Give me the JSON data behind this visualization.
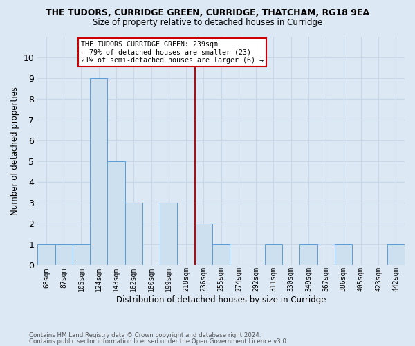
{
  "title": "THE TUDORS, CURRIDGE GREEN, CURRIDGE, THATCHAM, RG18 9EA",
  "subtitle": "Size of property relative to detached houses in Curridge",
  "xlabel": "Distribution of detached houses by size in Curridge",
  "ylabel": "Number of detached properties",
  "footnote1": "Contains HM Land Registry data © Crown copyright and database right 2024.",
  "footnote2": "Contains public sector information licensed under the Open Government Licence v3.0.",
  "categories": [
    "68sqm",
    "87sqm",
    "105sqm",
    "124sqm",
    "143sqm",
    "162sqm",
    "180sqm",
    "199sqm",
    "218sqm",
    "236sqm",
    "255sqm",
    "274sqm",
    "292sqm",
    "311sqm",
    "330sqm",
    "349sqm",
    "367sqm",
    "386sqm",
    "405sqm",
    "423sqm",
    "442sqm"
  ],
  "values": [
    1,
    1,
    1,
    9,
    5,
    3,
    0,
    3,
    0,
    2,
    1,
    0,
    0,
    1,
    0,
    1,
    0,
    1,
    0,
    0,
    1
  ],
  "bar_color": "#cce0f0",
  "bar_edge_color": "#5b9bd5",
  "grid_color": "#c8d8e8",
  "vline_index": 9,
  "vline_color": "#cc0000",
  "annotation_text": "THE TUDORS CURRIDGE GREEN: 239sqm\n← 79% of detached houses are smaller (23)\n21% of semi-detached houses are larger (6) →",
  "annotation_box_edge": "#cc0000",
  "ylim": [
    0,
    11
  ],
  "yticks": [
    0,
    1,
    2,
    3,
    4,
    5,
    6,
    7,
    8,
    9,
    10,
    11
  ],
  "background_color": "#dce8f4"
}
